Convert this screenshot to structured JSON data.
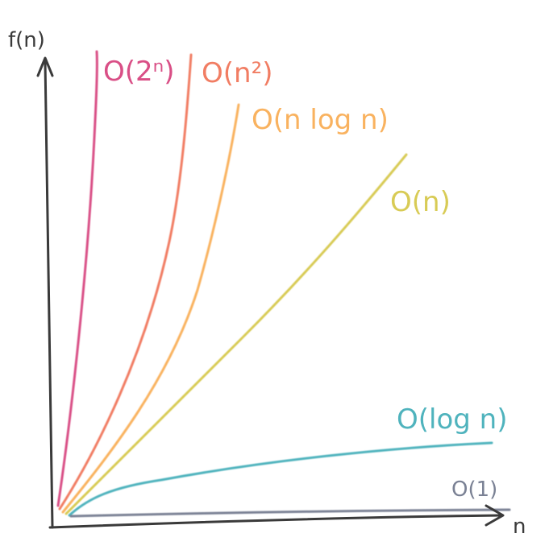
{
  "chart_data": {
    "type": "line",
    "title": "",
    "xlabel": "n",
    "ylabel": "f(n)",
    "grid": false,
    "legend": "labels at line ends",
    "series": [
      {
        "name": "O(2ⁿ)",
        "color": "#d94f86"
      },
      {
        "name": "O(n²)",
        "color": "#f17d63"
      },
      {
        "name": "O(n log n)",
        "color": "#f9b25f"
      },
      {
        "name": "O(n)",
        "color": "#d8cb55"
      },
      {
        "name": "O(log n)",
        "color": "#4fb3bd"
      },
      {
        "name": "O(1)",
        "color": "#7a8194"
      }
    ]
  }
}
